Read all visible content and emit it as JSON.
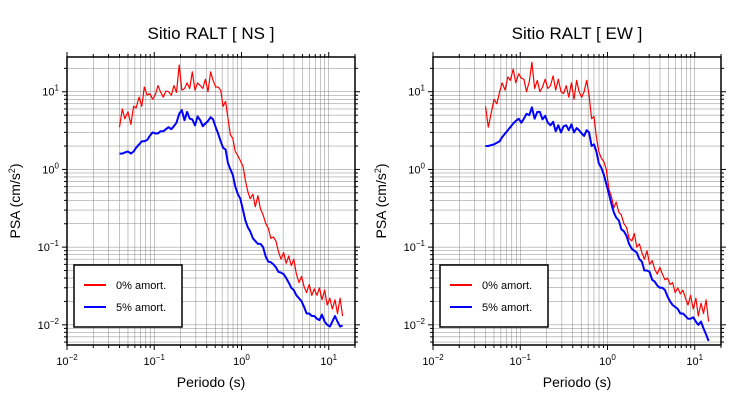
{
  "chart_data": [
    {
      "type": "line",
      "title": "Sitio RALT [ NS ]",
      "xlabel": "Periodo (s)",
      "ylabel": "PSA (cm/s²)",
      "xscale": "log",
      "yscale": "log",
      "xlim": [
        0.01,
        20
      ],
      "ylim": [
        0.0055,
        28
      ],
      "grid": true,
      "legend": "bottom-left",
      "x_ticks": [
        {
          "base": "10",
          "exp": "−2"
        },
        {
          "base": "10",
          "exp": "−1"
        },
        {
          "base": "10",
          "exp": "0"
        },
        {
          "base": "10",
          "exp": "1"
        }
      ],
      "y_ticks": [
        {
          "base": "10",
          "exp": "−2"
        },
        {
          "base": "10",
          "exp": "−1"
        },
        {
          "base": "10",
          "exp": "0"
        },
        {
          "base": "10",
          "exp": "1"
        }
      ],
      "series": [
        {
          "name": "0% amort.",
          "color": "#ff0000",
          "x": [
            0.04,
            0.043,
            0.046,
            0.05,
            0.054,
            0.058,
            0.062,
            0.067,
            0.072,
            0.077,
            0.083,
            0.089,
            0.096,
            0.103,
            0.11,
            0.118,
            0.127,
            0.136,
            0.146,
            0.157,
            0.168,
            0.18,
            0.193,
            0.207,
            0.222,
            0.238,
            0.255,
            0.273,
            0.293,
            0.314,
            0.336,
            0.36,
            0.386,
            0.413,
            0.442,
            0.473,
            0.506,
            0.54,
            0.577,
            0.616,
            0.657,
            0.7,
            0.746,
            0.795,
            0.85,
            0.91,
            0.97,
            1.04,
            1.11,
            1.18,
            1.26,
            1.35,
            1.44,
            1.54,
            1.65,
            1.77,
            1.9,
            2.03,
            2.17,
            2.32,
            2.48,
            2.65,
            2.84,
            3.04,
            3.25,
            3.48,
            3.72,
            3.98,
            4.26,
            4.56,
            4.88,
            5.22,
            5.58,
            5.97,
            6.39,
            6.84,
            7.32,
            7.83,
            8.38,
            8.97,
            9.6,
            10.3,
            11.0,
            11.8,
            12.6,
            13.5,
            14.4
          ],
          "y": [
            3.5,
            6,
            4.5,
            5.5,
            3.8,
            6.5,
            6.2,
            8.5,
            6.5,
            11.5,
            9,
            9.5,
            8,
            9.2,
            12,
            10,
            8.5,
            10.2,
            10,
            9,
            12,
            9.8,
            22,
            10.5,
            11,
            13,
            11,
            18,
            10.5,
            13,
            12,
            11,
            14.5,
            10,
            18,
            14,
            11.5,
            11.5,
            10.5,
            6.5,
            7.5,
            4.5,
            2.8,
            2.5,
            1.7,
            1.5,
            1.3,
            1.1,
            0.72,
            0.52,
            0.42,
            0.48,
            0.33,
            0.46,
            0.31,
            0.26,
            0.2,
            0.175,
            0.13,
            0.135,
            0.12,
            0.088,
            0.07,
            0.085,
            0.062,
            0.077,
            0.058,
            0.07,
            0.045,
            0.035,
            0.042,
            0.031,
            0.026,
            0.033,
            0.024,
            0.029,
            0.024,
            0.03,
            0.021,
            0.028,
            0.018,
            0.022,
            0.016,
            0.021,
            0.014,
            0.022,
            0.013
          ]
        },
        {
          "name": "5% amort.",
          "color": "#0000ff",
          "x": [
            0.04,
            0.043,
            0.046,
            0.05,
            0.054,
            0.058,
            0.062,
            0.067,
            0.072,
            0.077,
            0.083,
            0.089,
            0.096,
            0.103,
            0.11,
            0.118,
            0.127,
            0.136,
            0.146,
            0.157,
            0.168,
            0.18,
            0.193,
            0.207,
            0.222,
            0.238,
            0.255,
            0.273,
            0.293,
            0.314,
            0.336,
            0.36,
            0.386,
            0.413,
            0.442,
            0.473,
            0.506,
            0.54,
            0.577,
            0.616,
            0.657,
            0.7,
            0.746,
            0.795,
            0.85,
            0.91,
            0.97,
            1.04,
            1.11,
            1.18,
            1.26,
            1.35,
            1.44,
            1.54,
            1.65,
            1.77,
            1.9,
            2.03,
            2.17,
            2.32,
            2.48,
            2.65,
            2.84,
            3.04,
            3.25,
            3.48,
            3.72,
            3.98,
            4.26,
            4.56,
            4.88,
            5.22,
            5.58,
            5.97,
            6.39,
            6.84,
            7.32,
            7.83,
            8.38,
            8.97,
            9.6,
            10.3,
            11.0,
            11.8,
            12.6,
            13.5,
            14.4
          ],
          "y": [
            1.6,
            1.6,
            1.65,
            1.7,
            1.6,
            1.7,
            1.9,
            2.1,
            2.3,
            2.3,
            2.4,
            2.7,
            3.0,
            2.9,
            2.9,
            3.1,
            3.1,
            3.3,
            3.5,
            3.3,
            3.6,
            4.0,
            5.2,
            5.8,
            4.3,
            5.5,
            4.5,
            4.4,
            3.7,
            4.8,
            4.3,
            3.6,
            3.9,
            4.2,
            4.7,
            4.4,
            3.5,
            2.9,
            2.3,
            1.9,
            1.8,
            1.2,
            1.0,
            0.85,
            0.6,
            0.48,
            0.42,
            0.3,
            0.22,
            0.18,
            0.16,
            0.13,
            0.12,
            0.11,
            0.11,
            0.1,
            0.075,
            0.065,
            0.064,
            0.06,
            0.055,
            0.048,
            0.047,
            0.045,
            0.04,
            0.035,
            0.03,
            0.028,
            0.024,
            0.022,
            0.02,
            0.017,
            0.014,
            0.014,
            0.013,
            0.013,
            0.012,
            0.0115,
            0.0135,
            0.011,
            0.01,
            0.0095,
            0.011,
            0.013,
            0.011,
            0.0095,
            0.0098
          ]
        }
      ]
    },
    {
      "type": "line",
      "title": "Sitio RALT [ EW ]",
      "xlabel": "Periodo (s)",
      "ylabel": "PSA (cm/s²)",
      "xscale": "log",
      "yscale": "log",
      "xlim": [
        0.01,
        20
      ],
      "ylim": [
        0.0055,
        28
      ],
      "grid": true,
      "legend": "bottom-left",
      "x_ticks": [
        {
          "base": "10",
          "exp": "−2"
        },
        {
          "base": "10",
          "exp": "−1"
        },
        {
          "base": "10",
          "exp": "0"
        },
        {
          "base": "10",
          "exp": "1"
        }
      ],
      "y_ticks": [
        {
          "base": "10",
          "exp": "−2"
        },
        {
          "base": "10",
          "exp": "−1"
        },
        {
          "base": "10",
          "exp": "0"
        },
        {
          "base": "10",
          "exp": "1"
        }
      ],
      "series": [
        {
          "name": "0% amort.",
          "color": "#ff0000",
          "x": [
            0.04,
            0.043,
            0.046,
            0.05,
            0.054,
            0.058,
            0.062,
            0.067,
            0.072,
            0.077,
            0.083,
            0.089,
            0.096,
            0.103,
            0.11,
            0.118,
            0.127,
            0.136,
            0.146,
            0.157,
            0.168,
            0.18,
            0.193,
            0.207,
            0.222,
            0.238,
            0.255,
            0.273,
            0.293,
            0.314,
            0.336,
            0.36,
            0.386,
            0.413,
            0.442,
            0.473,
            0.506,
            0.54,
            0.577,
            0.616,
            0.657,
            0.7,
            0.746,
            0.795,
            0.85,
            0.91,
            0.97,
            1.04,
            1.11,
            1.18,
            1.26,
            1.35,
            1.44,
            1.54,
            1.65,
            1.77,
            1.9,
            2.03,
            2.17,
            2.32,
            2.48,
            2.65,
            2.84,
            3.04,
            3.25,
            3.48,
            3.72,
            3.98,
            4.26,
            4.56,
            4.88,
            5.22,
            5.58,
            5.97,
            6.39,
            6.84,
            7.32,
            7.83,
            8.38,
            8.97,
            9.6,
            10.3,
            11.0,
            11.8,
            12.6,
            13.5,
            14.4
          ],
          "y": [
            6.5,
            3.5,
            5,
            8,
            7,
            10,
            13,
            10.5,
            15.5,
            14,
            19.5,
            13,
            17,
            15,
            14.5,
            10,
            13.5,
            24,
            11,
            14,
            10,
            11.5,
            14.5,
            11,
            12,
            16,
            10.5,
            14.5,
            10,
            9.5,
            12,
            8.5,
            13,
            8,
            14,
            10,
            8.5,
            10,
            14,
            9,
            4.5,
            4.8,
            2.6,
            1.7,
            1.4,
            1.25,
            1.0,
            0.55,
            0.45,
            0.32,
            0.38,
            0.28,
            0.26,
            0.2,
            0.18,
            0.13,
            0.12,
            0.15,
            0.1,
            0.11,
            0.085,
            0.07,
            0.09,
            0.06,
            0.067,
            0.052,
            0.045,
            0.055,
            0.045,
            0.038,
            0.04,
            0.033,
            0.035,
            0.026,
            0.03,
            0.025,
            0.028,
            0.022,
            0.018,
            0.024,
            0.016,
            0.022,
            0.013,
            0.019,
            0.014,
            0.021,
            0.011
          ]
        },
        {
          "name": "5% amort.",
          "color": "#0000ff",
          "x": [
            0.04,
            0.043,
            0.046,
            0.05,
            0.054,
            0.058,
            0.062,
            0.067,
            0.072,
            0.077,
            0.083,
            0.089,
            0.096,
            0.103,
            0.11,
            0.118,
            0.127,
            0.136,
            0.146,
            0.157,
            0.168,
            0.18,
            0.193,
            0.207,
            0.222,
            0.238,
            0.255,
            0.273,
            0.293,
            0.314,
            0.336,
            0.36,
            0.386,
            0.413,
            0.442,
            0.473,
            0.506,
            0.54,
            0.577,
            0.616,
            0.657,
            0.7,
            0.746,
            0.795,
            0.85,
            0.91,
            0.97,
            1.04,
            1.11,
            1.18,
            1.26,
            1.35,
            1.44,
            1.54,
            1.65,
            1.77,
            1.9,
            2.03,
            2.17,
            2.32,
            2.48,
            2.65,
            2.84,
            3.04,
            3.25,
            3.48,
            3.72,
            3.98,
            4.26,
            4.56,
            4.88,
            5.22,
            5.58,
            5.97,
            6.39,
            6.84,
            7.32,
            7.83,
            8.38,
            8.97,
            9.6,
            10.3,
            11.0,
            11.8,
            12.6,
            13.5,
            14.4
          ],
          "y": [
            2.0,
            2.0,
            2.05,
            2.1,
            2.2,
            2.3,
            2.6,
            2.9,
            3.2,
            3.5,
            3.9,
            4.2,
            4.5,
            4.0,
            4.5,
            5.2,
            5.0,
            6.3,
            4.5,
            5.5,
            5.5,
            4.4,
            4.9,
            4.0,
            3.7,
            4.1,
            3.1,
            3.7,
            3.0,
            3.6,
            3.7,
            3.2,
            3.8,
            3.0,
            3.4,
            3.2,
            2.9,
            2.7,
            3.2,
            3.0,
            2.0,
            2.1,
            1.7,
            1.2,
            1.05,
            0.85,
            0.65,
            0.48,
            0.36,
            0.28,
            0.24,
            0.22,
            0.17,
            0.16,
            0.14,
            0.11,
            0.095,
            0.09,
            0.085,
            0.07,
            0.065,
            0.05,
            0.05,
            0.048,
            0.038,
            0.036,
            0.032,
            0.03,
            0.03,
            0.028,
            0.023,
            0.02,
            0.018,
            0.017,
            0.016,
            0.014,
            0.014,
            0.013,
            0.012,
            0.012,
            0.0125,
            0.011,
            0.01,
            0.011,
            0.009,
            0.0075,
            0.0062
          ]
        }
      ]
    }
  ]
}
